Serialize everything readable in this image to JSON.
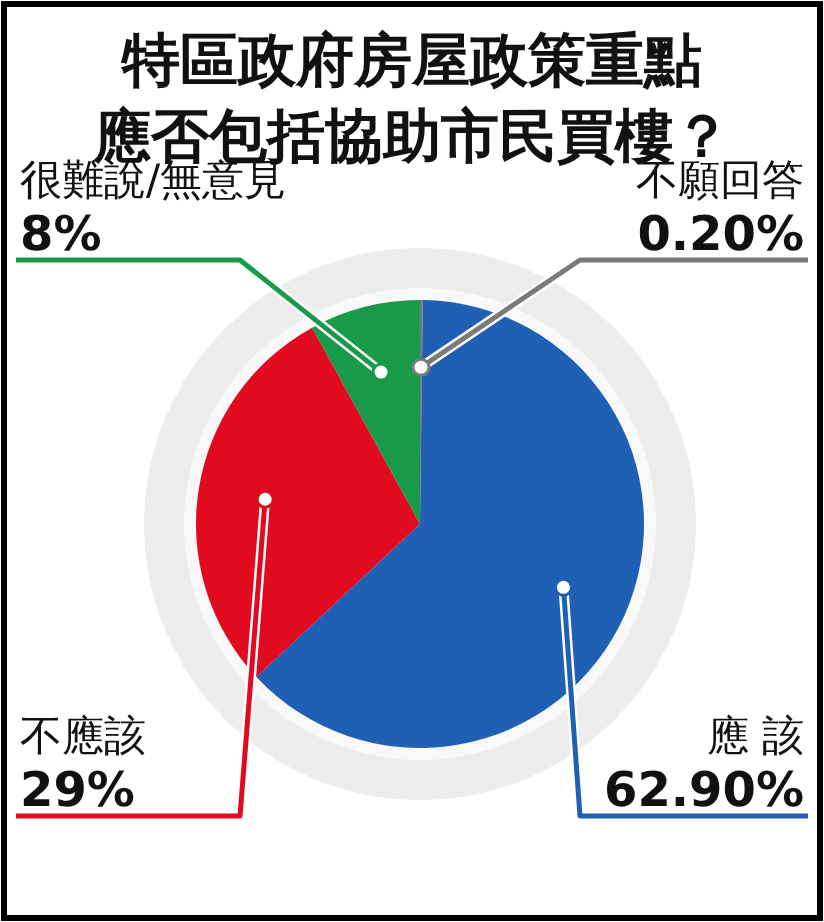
{
  "chart_data": {
    "type": "pie",
    "title": "特區政府房屋政策重點應否包括協助市民買樓？",
    "categories": [
      "不願回答",
      "應 該",
      "不應該",
      "很難說/無意見"
    ],
    "values": [
      0.2,
      62.9,
      29,
      8
    ],
    "value_labels": [
      "0.20%",
      "62.90%",
      "29%",
      "8%"
    ],
    "colors": [
      "#7a7a7a",
      "#1f5fb4",
      "#e10a1e",
      "#189a48"
    ]
  }
}
